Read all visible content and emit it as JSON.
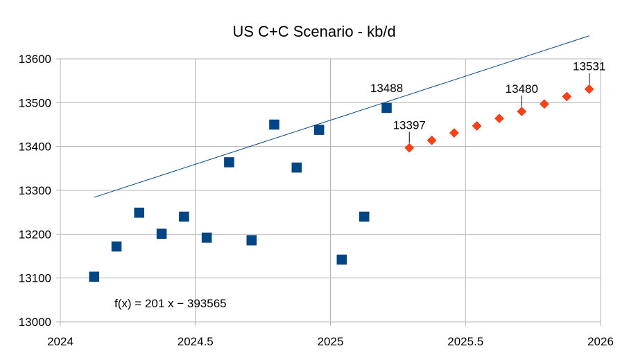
{
  "chart_data": {
    "type": "scatter",
    "title": "US C+C Scenario - kb/d",
    "xlim": [
      2024,
      2026
    ],
    "ylim": [
      13000,
      13600
    ],
    "xticks": [
      "2024",
      "2024.5",
      "2025",
      "2025.5",
      "2026"
    ],
    "yticks": [
      "13000",
      "13100",
      "13200",
      "13300",
      "13400",
      "13500",
      "13600"
    ],
    "grid": true,
    "series": [
      {
        "marker": "square",
        "color": "#004586",
        "points": [
          {
            "x": 2024.125,
            "y": 13103
          },
          {
            "x": 2024.208,
            "y": 13172
          },
          {
            "x": 2024.292,
            "y": 13249
          },
          {
            "x": 2024.375,
            "y": 13201
          },
          {
            "x": 2024.458,
            "y": 13240
          },
          {
            "x": 2024.542,
            "y": 13192
          },
          {
            "x": 2024.625,
            "y": 13364
          },
          {
            "x": 2024.708,
            "y": 13186
          },
          {
            "x": 2024.792,
            "y": 13450
          },
          {
            "x": 2024.875,
            "y": 13352
          },
          {
            "x": 2024.958,
            "y": 13438
          },
          {
            "x": 2025.042,
            "y": 13142
          },
          {
            "x": 2025.125,
            "y": 13240
          },
          {
            "x": 2025.208,
            "y": 13488
          }
        ]
      },
      {
        "marker": "diamond",
        "color": "#ff420e",
        "points": [
          {
            "x": 2025.292,
            "y": 13397
          },
          {
            "x": 2025.375,
            "y": 13414
          },
          {
            "x": 2025.458,
            "y": 13431
          },
          {
            "x": 2025.542,
            "y": 13447
          },
          {
            "x": 2025.625,
            "y": 13464
          },
          {
            "x": 2025.708,
            "y": 13480
          },
          {
            "x": 2025.792,
            "y": 13497
          },
          {
            "x": 2025.875,
            "y": 13514
          },
          {
            "x": 2025.958,
            "y": 13531
          }
        ]
      }
    ],
    "trendline": {
      "slope": 201,
      "intercept": -393565,
      "x_from": 2024.125,
      "x_to": 2025.958,
      "color": "#004586",
      "equation": "f(x) = 201 x − 393565"
    },
    "data_labels": [
      {
        "x": 2025.208,
        "y": 13488,
        "text": "13488",
        "leader": false
      },
      {
        "x": 2025.292,
        "y": 13397,
        "text": "13397",
        "leader": true
      },
      {
        "x": 2025.708,
        "y": 13480,
        "text": "13480",
        "leader": true
      },
      {
        "x": 2025.958,
        "y": 13531,
        "text": "13531",
        "leader": true
      }
    ]
  }
}
